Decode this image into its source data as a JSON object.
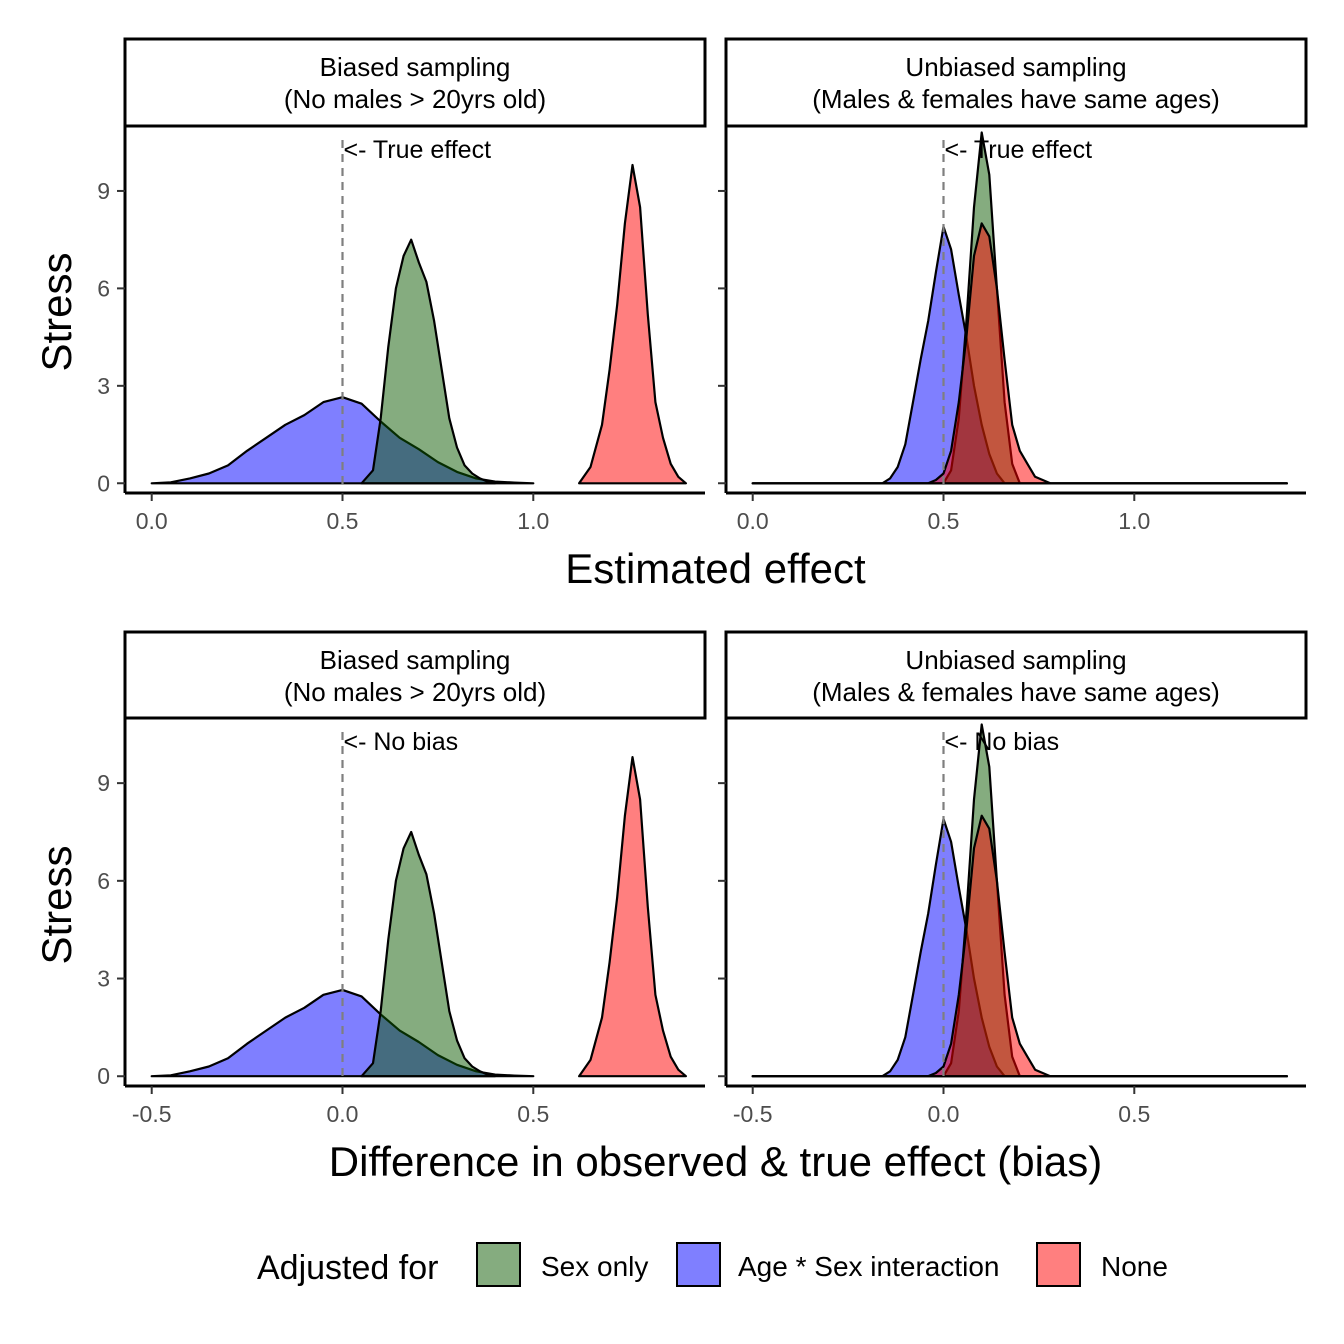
{
  "legend": {
    "title": "Adjusted for",
    "entries": [
      {
        "label": "Sex only",
        "color": "#0B5A00"
      },
      {
        "label": "Age * Sex interaction",
        "color": "#0000FF"
      },
      {
        "label": "None",
        "color": "#FF0000"
      }
    ],
    "position": "bottom"
  },
  "chart_data": [
    {
      "type": "area",
      "title": "",
      "xlabel": "Estimated effect",
      "ylabel": "Stress",
      "ylim": [
        -0.3,
        11
      ],
      "yticks": [
        0,
        3,
        6,
        9
      ],
      "ytick_labels": [
        "0",
        "3",
        "6",
        "9"
      ],
      "grid": false,
      "reference_line": {
        "x": 0.5,
        "style": "dashed",
        "label": "<- True effect"
      },
      "panels": [
        {
          "strip": [
            "Biased sampling",
            "(No males > 20yrs old)"
          ],
          "xlim": [
            -0.07,
            1.45
          ],
          "xticks": [
            0,
            0.5,
            1.0
          ],
          "xtick_labels": [
            "0.0",
            "0.5",
            "1.0"
          ],
          "series": [
            {
              "name": "Age * Sex interaction",
              "color": "#0000FF",
              "x": [
                0.0,
                0.05,
                0.1,
                0.15,
                0.2,
                0.25,
                0.3,
                0.35,
                0.4,
                0.45,
                0.5,
                0.55,
                0.6,
                0.65,
                0.7,
                0.75,
                0.8,
                0.85,
                0.9,
                0.95,
                1.0
              ],
              "y": [
                0.0,
                0.03,
                0.15,
                0.3,
                0.55,
                1.0,
                1.4,
                1.8,
                2.1,
                2.5,
                2.65,
                2.45,
                1.9,
                1.4,
                1.05,
                0.65,
                0.35,
                0.15,
                0.05,
                0.02,
                0.0
              ]
            },
            {
              "name": "Sex only",
              "color": "#0B5A00",
              "x": [
                0.55,
                0.58,
                0.6,
                0.62,
                0.64,
                0.66,
                0.68,
                0.7,
                0.72,
                0.74,
                0.76,
                0.78,
                0.8,
                0.82,
                0.84,
                0.86,
                0.88,
                0.9
              ],
              "y": [
                0.0,
                0.4,
                2.0,
                4.2,
                6.0,
                7.0,
                7.5,
                6.8,
                6.2,
                5.0,
                3.5,
                2.0,
                1.1,
                0.55,
                0.3,
                0.15,
                0.05,
                0.0
              ]
            },
            {
              "name": "None",
              "color": "#FF0000",
              "x": [
                1.12,
                1.15,
                1.18,
                1.2,
                1.22,
                1.24,
                1.26,
                1.28,
                1.3,
                1.32,
                1.34,
                1.36,
                1.38,
                1.4
              ],
              "y": [
                0.0,
                0.5,
                1.8,
                3.5,
                5.5,
                8.0,
                9.8,
                8.5,
                5.2,
                2.5,
                1.4,
                0.6,
                0.2,
                0.0
              ]
            }
          ]
        },
        {
          "strip": [
            "Unbiased sampling",
            "(Males & females have same ages)"
          ],
          "xlim": [
            -0.07,
            1.45
          ],
          "xticks": [
            0,
            0.5,
            1.0
          ],
          "xtick_labels": [
            "0.0",
            "0.5",
            "1.0"
          ],
          "series": [
            {
              "name": "Age * Sex interaction",
              "color": "#0000FF",
              "x": [
                0.0,
                0.34,
                0.36,
                0.38,
                0.4,
                0.42,
                0.44,
                0.46,
                0.48,
                0.5,
                0.52,
                0.54,
                0.56,
                0.58,
                0.6,
                0.62,
                0.64,
                0.66,
                1.4
              ],
              "y": [
                0.0,
                0.0,
                0.15,
                0.5,
                1.2,
                2.5,
                3.8,
                5.0,
                6.5,
                7.9,
                7.2,
                5.8,
                4.5,
                3.0,
                1.8,
                0.9,
                0.3,
                0.0,
                0.0
              ]
            },
            {
              "name": "Sex only",
              "color": "#0B5A00",
              "x": [
                0.0,
                0.5,
                0.52,
                0.54,
                0.56,
                0.58,
                0.6,
                0.62,
                0.64,
                0.66,
                0.68,
                0.7,
                1.4
              ],
              "y": [
                0.0,
                0.0,
                0.4,
                2.0,
                5.0,
                8.5,
                10.8,
                9.5,
                6.0,
                2.5,
                0.6,
                0.0,
                0.0
              ]
            },
            {
              "name": "None",
              "color": "#FF0000",
              "x": [
                0.0,
                0.46,
                0.48,
                0.5,
                0.52,
                0.54,
                0.56,
                0.58,
                0.6,
                0.62,
                0.64,
                0.66,
                0.68,
                0.7,
                0.72,
                0.74,
                0.78,
                1.4
              ],
              "y": [
                0.0,
                0.0,
                0.1,
                0.3,
                1.0,
                2.5,
                4.5,
                7.0,
                8.0,
                7.6,
                6.0,
                3.8,
                1.8,
                1.0,
                0.6,
                0.2,
                0.0,
                0.0
              ]
            }
          ]
        }
      ]
    },
    {
      "type": "area",
      "title": "",
      "xlabel": "Difference in observed & true effect (bias)",
      "ylabel": "Stress",
      "ylim": [
        -0.3,
        11
      ],
      "yticks": [
        0,
        3,
        6,
        9
      ],
      "ytick_labels": [
        "0",
        "3",
        "6",
        "9"
      ],
      "grid": false,
      "reference_line": {
        "x": 0,
        "style": "dashed",
        "label": "<- No bias"
      },
      "panels": [
        {
          "strip": [
            "Biased sampling",
            "(No males > 20yrs old)"
          ],
          "xlim": [
            -0.57,
            0.95
          ],
          "xticks": [
            -0.5,
            0,
            0.5
          ],
          "xtick_labels": [
            "-0.5",
            "0.0",
            "0.5"
          ],
          "series": [
            {
              "name": "Age * Sex interaction",
              "color": "#0000FF",
              "x": [
                -0.5,
                -0.45,
                -0.4,
                -0.35,
                -0.3,
                -0.25,
                -0.2,
                -0.15,
                -0.1,
                -0.05,
                0.0,
                0.05,
                0.1,
                0.15,
                0.2,
                0.25,
                0.3,
                0.35,
                0.4,
                0.45,
                0.5
              ],
              "y": [
                0.0,
                0.03,
                0.15,
                0.3,
                0.55,
                1.0,
                1.4,
                1.8,
                2.1,
                2.5,
                2.65,
                2.45,
                1.9,
                1.4,
                1.05,
                0.65,
                0.35,
                0.15,
                0.05,
                0.02,
                0.0
              ]
            },
            {
              "name": "Sex only",
              "color": "#0B5A00",
              "x": [
                0.05,
                0.08,
                0.1,
                0.12,
                0.14,
                0.16,
                0.18,
                0.2,
                0.22,
                0.24,
                0.26,
                0.28,
                0.3,
                0.32,
                0.34,
                0.36,
                0.38,
                0.4
              ],
              "y": [
                0.0,
                0.4,
                2.0,
                4.2,
                6.0,
                7.0,
                7.5,
                6.8,
                6.2,
                5.0,
                3.5,
                2.0,
                1.1,
                0.55,
                0.3,
                0.15,
                0.05,
                0.0
              ]
            },
            {
              "name": "None",
              "color": "#FF0000",
              "x": [
                0.62,
                0.65,
                0.68,
                0.7,
                0.72,
                0.74,
                0.76,
                0.78,
                0.8,
                0.82,
                0.84,
                0.86,
                0.88,
                0.9
              ],
              "y": [
                0.0,
                0.5,
                1.8,
                3.5,
                5.5,
                8.0,
                9.8,
                8.5,
                5.2,
                2.5,
                1.4,
                0.6,
                0.2,
                0.0
              ]
            }
          ]
        },
        {
          "strip": [
            "Unbiased sampling",
            "(Males & females have same ages)"
          ],
          "xlim": [
            -0.57,
            0.95
          ],
          "xticks": [
            -0.5,
            0,
            0.5
          ],
          "xtick_labels": [
            "-0.5",
            "0.0",
            "0.5"
          ],
          "series": [
            {
              "name": "Age * Sex interaction",
              "color": "#0000FF",
              "x": [
                -0.5,
                -0.16,
                -0.14,
                -0.12,
                -0.1,
                -0.08,
                -0.06,
                -0.04,
                -0.02,
                0.0,
                0.02,
                0.04,
                0.06,
                0.08,
                0.1,
                0.12,
                0.14,
                0.16,
                0.9
              ],
              "y": [
                0.0,
                0.0,
                0.15,
                0.5,
                1.2,
                2.5,
                3.8,
                5.0,
                6.5,
                7.9,
                7.2,
                5.8,
                4.5,
                3.0,
                1.8,
                0.9,
                0.3,
                0.0,
                0.0
              ]
            },
            {
              "name": "Sex only",
              "color": "#0B5A00",
              "x": [
                -0.5,
                0.0,
                0.02,
                0.04,
                0.06,
                0.08,
                0.1,
                0.12,
                0.14,
                0.16,
                0.18,
                0.2,
                0.9
              ],
              "y": [
                0.0,
                0.0,
                0.4,
                2.0,
                5.0,
                8.5,
                10.8,
                9.5,
                6.0,
                2.5,
                0.6,
                0.0,
                0.0
              ]
            },
            {
              "name": "None",
              "color": "#FF0000",
              "x": [
                -0.5,
                -0.04,
                -0.02,
                0.0,
                0.02,
                0.04,
                0.06,
                0.08,
                0.1,
                0.12,
                0.14,
                0.16,
                0.18,
                0.2,
                0.22,
                0.24,
                0.28,
                0.9
              ],
              "y": [
                0.0,
                0.0,
                0.1,
                0.3,
                1.0,
                2.5,
                4.5,
                7.0,
                8.0,
                7.6,
                6.0,
                3.8,
                1.8,
                1.0,
                0.6,
                0.2,
                0.0,
                0.0
              ]
            }
          ]
        }
      ]
    }
  ]
}
